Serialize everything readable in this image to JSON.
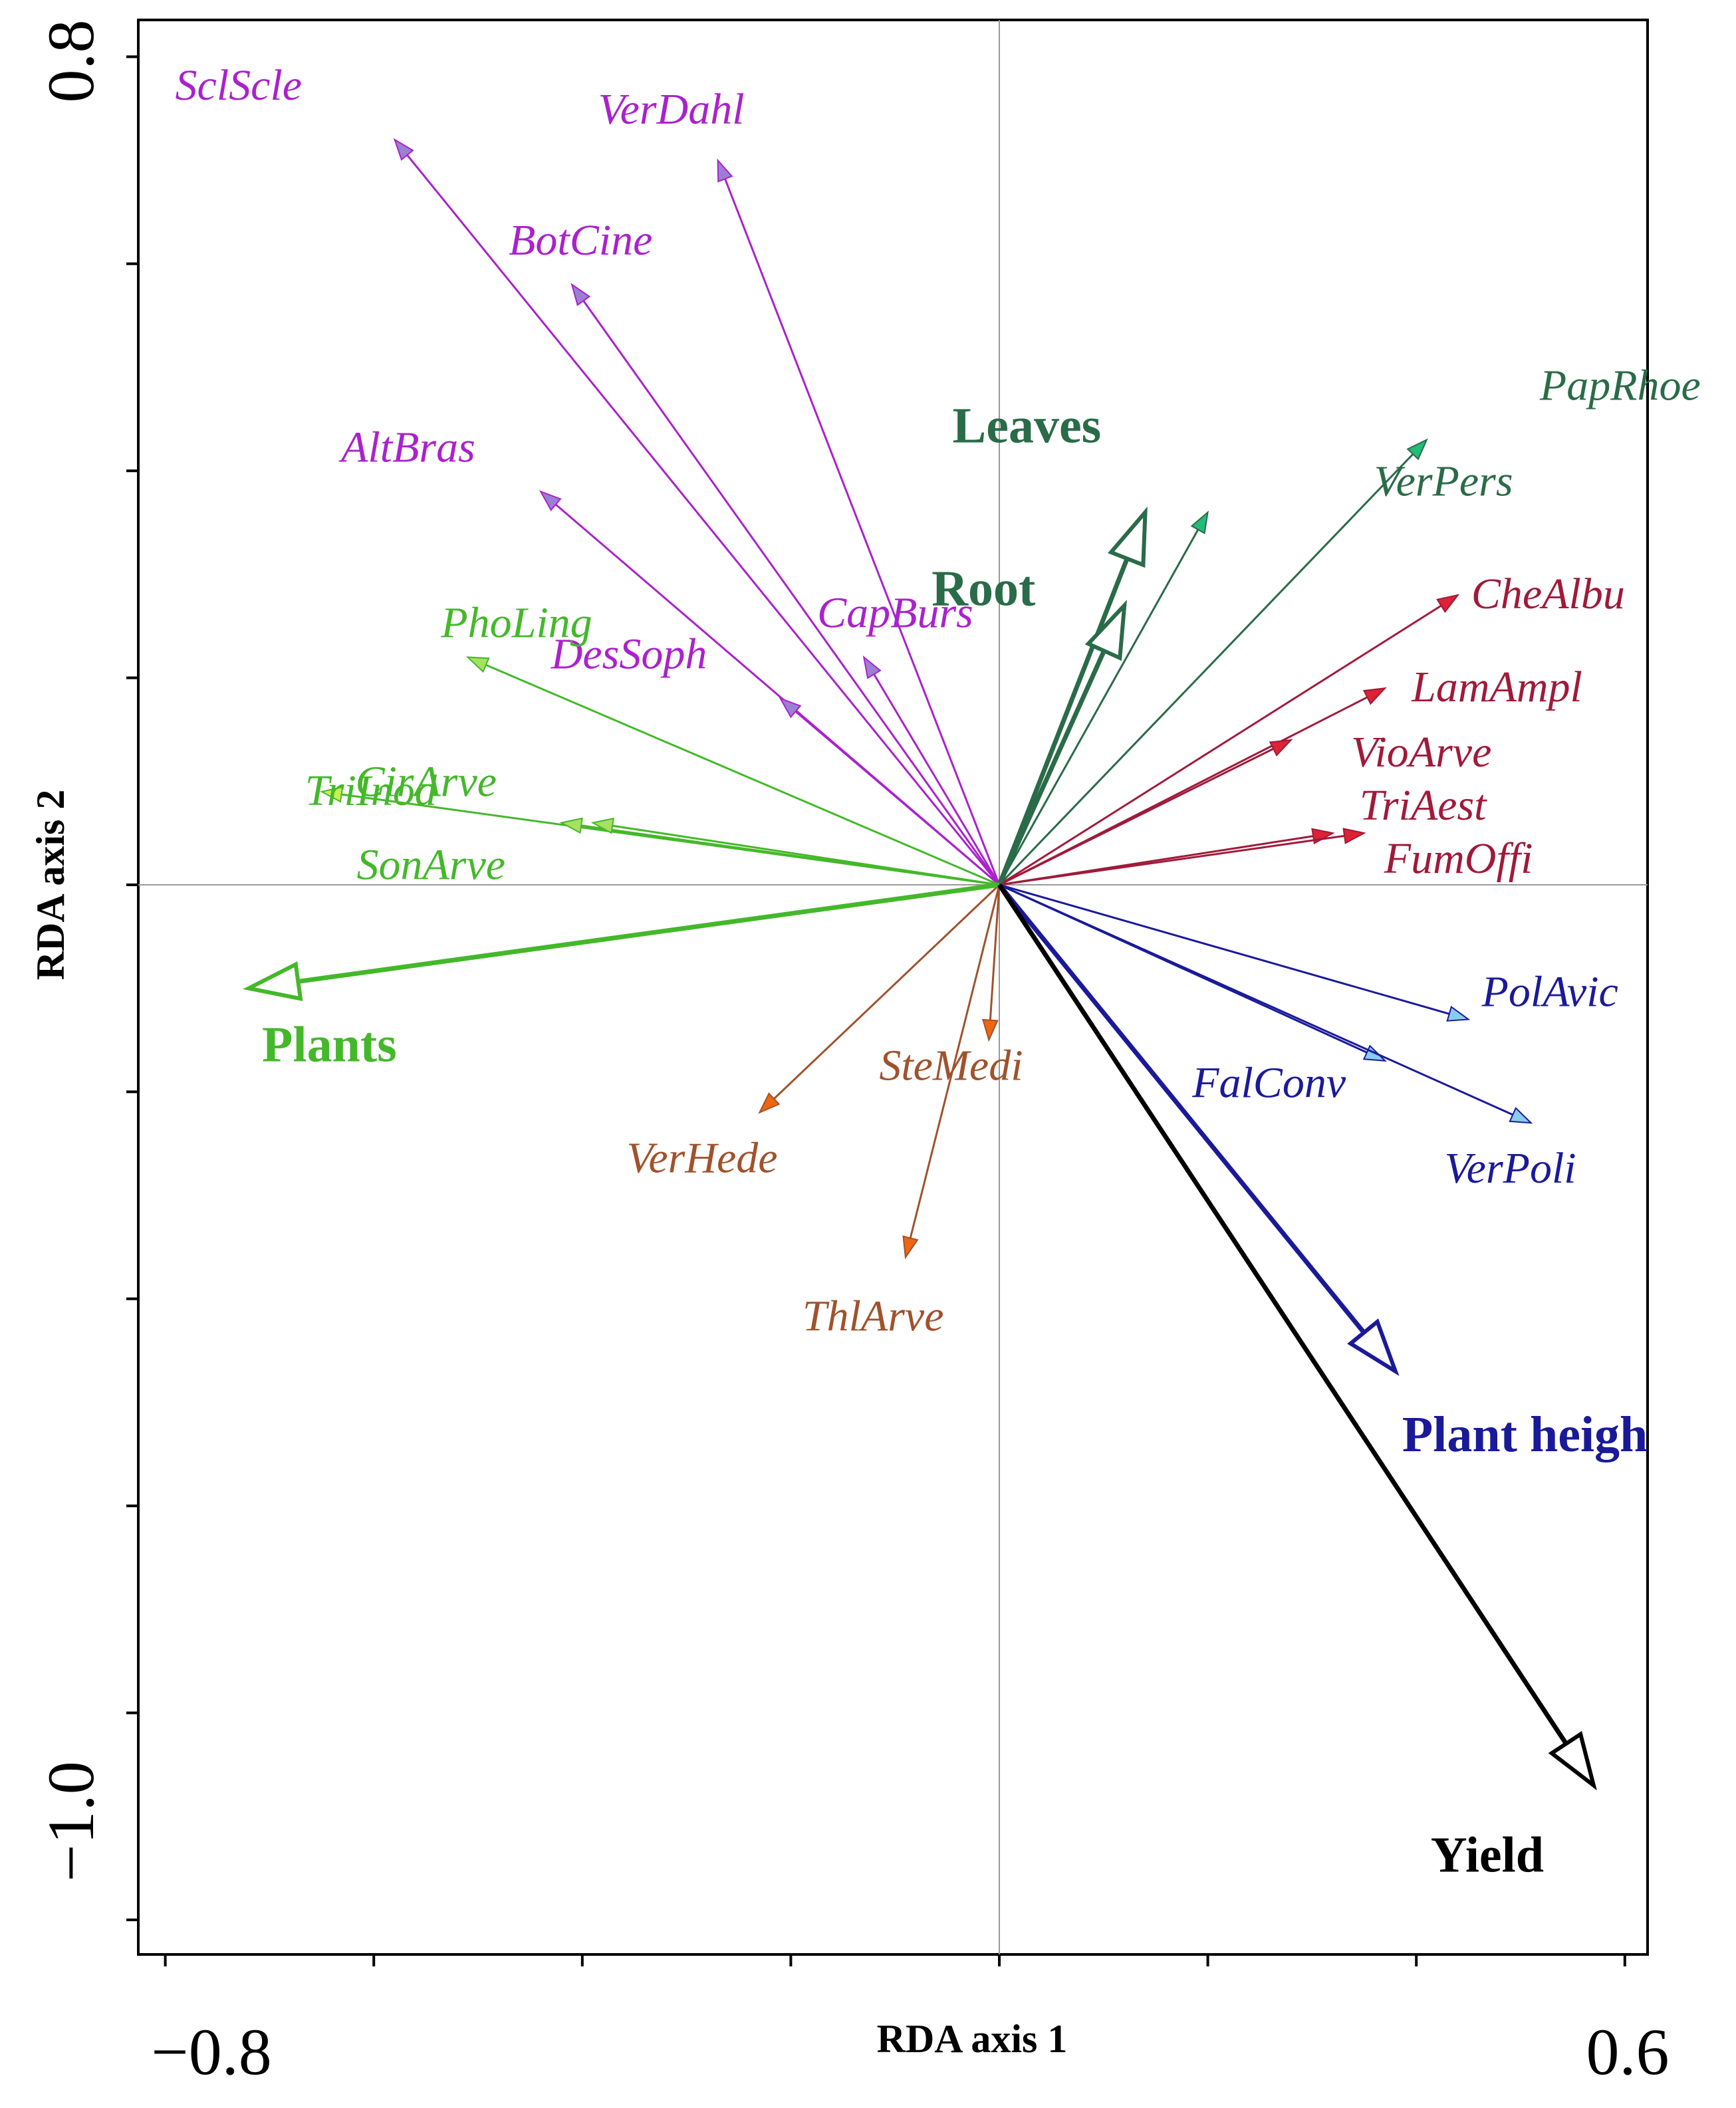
{
  "chart_data": {
    "type": "scatter",
    "subtype": "rda-biplot",
    "title": "",
    "xlabel": "RDA axis 1",
    "ylabel": "RDA axis 2",
    "xlim": [
      -0.84,
      0.64
    ],
    "ylim": [
      -1.04,
      0.83
    ],
    "xticks": [
      -0.8,
      -0.6,
      -0.4,
      -0.2,
      0.0,
      0.2,
      0.4,
      0.6
    ],
    "yticks": [
      -1.0,
      -0.8,
      -0.6,
      -0.4,
      -0.2,
      0.0,
      0.2,
      0.4,
      0.6,
      0.8
    ],
    "x_tick_labels": [
      {
        "value": -0.8,
        "text": "−0.8"
      },
      {
        "value": 0.6,
        "text": "0.6"
      }
    ],
    "y_tick_labels": [
      {
        "value": 0.8,
        "text": "0.8"
      },
      {
        "value": -1.0,
        "text": "−1.0"
      }
    ],
    "reference_lines": {
      "x": 0,
      "y": 0
    },
    "grid": false,
    "legend": "none",
    "species_vectors": [
      {
        "name": "SclScle",
        "x": -0.58,
        "y": 0.72,
        "color": "#aa22cc",
        "head": "#9b7fd4"
      },
      {
        "name": "VerDahl",
        "x": -0.27,
        "y": 0.7,
        "color": "#aa22cc",
        "head": "#9b7fd4"
      },
      {
        "name": "BotCine",
        "x": -0.41,
        "y": 0.58,
        "color": "#aa22cc",
        "head": "#9b7fd4"
      },
      {
        "name": "AltBras",
        "x": -0.44,
        "y": 0.38,
        "color": "#aa22cc",
        "head": "#9b7fd4"
      },
      {
        "name": "CapBurs",
        "x": -0.13,
        "y": 0.22,
        "color": "#aa22cc",
        "head": "#9b7fd4"
      },
      {
        "name": "DesSoph",
        "x": -0.21,
        "y": 0.18,
        "color": "#aa22cc",
        "head": "#9b7fd4"
      },
      {
        "name": "PhoLing",
        "x": -0.51,
        "y": 0.22,
        "color": "#44b82a",
        "head": "#a8e060"
      },
      {
        "name": "TriInod",
        "x": -0.65,
        "y": 0.09,
        "color": "#44b82a",
        "head": "#ccee55"
      },
      {
        "name": "CirArve",
        "x": -0.42,
        "y": 0.06,
        "color": "#44b82a",
        "head": "#a8e060"
      },
      {
        "name": "SonArve",
        "x": -0.39,
        "y": 0.06,
        "color": "#44b82a",
        "head": "#a8e060"
      },
      {
        "name": "PapRhoe",
        "x": 0.41,
        "y": 0.43,
        "color": "#2a6b48",
        "head": "#22bb77"
      },
      {
        "name": "VerPers",
        "x": 0.2,
        "y": 0.36,
        "color": "#2a6b48",
        "head": "#22bb77"
      },
      {
        "name": "CheAlbu",
        "x": 0.44,
        "y": 0.28,
        "color": "#a01a3a",
        "head": "#dd2233"
      },
      {
        "name": "LamAmpl",
        "x": 0.37,
        "y": 0.19,
        "color": "#a01a3a",
        "head": "#dd2233"
      },
      {
        "name": "VioArve",
        "x": 0.28,
        "y": 0.14,
        "color": "#a01a3a",
        "head": "#dd2233"
      },
      {
        "name": "TriAest",
        "x": 0.32,
        "y": 0.05,
        "color": "#a01a3a",
        "head": "#dd2233"
      },
      {
        "name": "FumOffi",
        "x": 0.35,
        "y": 0.05,
        "color": "#a01a3a",
        "head": "#dd2233"
      },
      {
        "name": "PolAvic",
        "x": 0.45,
        "y": -0.13,
        "color": "#1a1a99",
        "head": "#88ccee"
      },
      {
        "name": "FalConv",
        "x": 0.37,
        "y": -0.17,
        "color": "#1a1a99",
        "head": "#88ccee"
      },
      {
        "name": "VerPoli",
        "x": 0.51,
        "y": -0.23,
        "color": "#1a1a99",
        "head": "#88ccee"
      },
      {
        "name": "SteMedi",
        "x": -0.01,
        "y": -0.15,
        "color": "#a0522d",
        "head": "#ee6611"
      },
      {
        "name": "VerHede",
        "x": -0.23,
        "y": -0.22,
        "color": "#a0522d",
        "head": "#ee6611"
      },
      {
        "name": "ThlArve",
        "x": -0.09,
        "y": -0.36,
        "color": "#a0522d",
        "head": "#ee6611"
      }
    ],
    "environmental_vectors": [
      {
        "name": "Leaves",
        "x": 0.14,
        "y": 0.36,
        "color": "#2a6b48"
      },
      {
        "name": "Root",
        "x": 0.12,
        "y": 0.27,
        "color": "#2a6b48"
      },
      {
        "name": "Plants",
        "x": -0.72,
        "y": -0.1,
        "color": "#44b82a"
      },
      {
        "name": "Plant heigh",
        "x": 0.38,
        "y": -0.47,
        "color": "#1a1a99"
      },
      {
        "name": "Yield",
        "x": 0.57,
        "y": -0.87,
        "color": "#000000"
      }
    ]
  }
}
